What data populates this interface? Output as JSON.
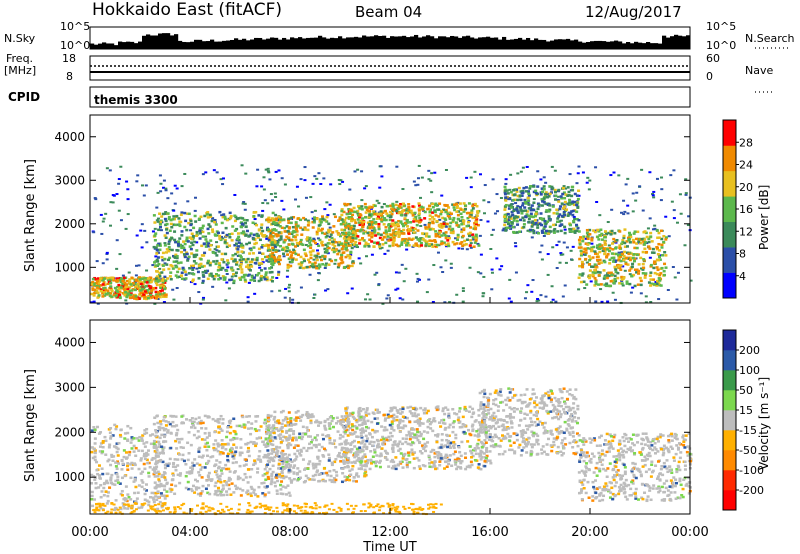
{
  "header": {
    "station": "Hokkaido East (fitACF)",
    "beam": "Beam 04",
    "date": "12/Aug/2017"
  },
  "status_panels": {
    "nsky_label": "N.Sky",
    "nsky_ticks": [
      "10^5",
      "10^0"
    ],
    "nsearch_label": "N.Search",
    "nsearch_ticks": [
      "10^5",
      "10^0"
    ],
    "freq_label_1": "Freq.",
    "freq_label_2": "[MHz]",
    "freq_ticks": [
      "18",
      "8"
    ],
    "nave_label": "Nave",
    "nave_ticks": [
      "60",
      "0"
    ],
    "cpid_label": "CPID",
    "cpid_value": "themis 3300"
  },
  "chart_data": [
    {
      "type": "heatmap",
      "name": "power",
      "ylabel": "Slant Range [km]",
      "yticks": [
        "4000",
        "3000",
        "2000",
        "1000"
      ],
      "ylim": [
        180,
        4500
      ],
      "xlim_hours": [
        0,
        24
      ],
      "colorbar_label": "Power [dB]",
      "colorbar_ticks": [
        "28",
        "24",
        "20",
        "16",
        "12",
        "8",
        "4"
      ],
      "colorbar_colors": [
        "#0000ff",
        "#2b4fa8",
        "#3b8a5a",
        "#5cb84c",
        "#e8c020",
        "#f08a00",
        "#ff0000"
      ],
      "echo_bands": [
        {
          "start_h": 0.0,
          "end_h": 3.0,
          "range_km": [
            300,
            800
          ],
          "level": 28
        },
        {
          "start_h": 2.5,
          "end_h": 7.5,
          "range_km": [
            700,
            2300
          ],
          "level": 22
        },
        {
          "start_h": 7.0,
          "end_h": 10.5,
          "range_km": [
            1000,
            2200
          ],
          "level": 26
        },
        {
          "start_h": 10.0,
          "end_h": 15.5,
          "range_km": [
            1500,
            2500
          ],
          "level": 27
        },
        {
          "start_h": 16.5,
          "end_h": 19.5,
          "range_km": [
            1800,
            2900
          ],
          "level": 20
        },
        {
          "start_h": 19.5,
          "end_h": 23.0,
          "range_km": [
            600,
            1900
          ],
          "level": 26
        }
      ]
    },
    {
      "type": "heatmap",
      "name": "velocity",
      "ylabel": "Slant Range [km]",
      "yticks": [
        "4000",
        "3000",
        "2000",
        "1000"
      ],
      "ylim": [
        180,
        4500
      ],
      "xlim_hours": [
        0,
        24
      ],
      "colorbar_label": "Velocity [m s⁻¹]",
      "colorbar_ticks": [
        "200",
        "100",
        "50",
        "15",
        "-15",
        "-50",
        "-100",
        "-200"
      ],
      "colorbar_colors": [
        "#ff0000",
        "#ff2a00",
        "#ff8a00",
        "#ffb000",
        "#bdbdbd",
        "#7cd84e",
        "#3a9a4a",
        "#2b5aa8",
        "#1e2a9a"
      ],
      "dominant_level": "-15 to 15"
    }
  ],
  "x_axis": {
    "ticks": [
      "00:00",
      "04:00",
      "08:00",
      "12:00",
      "16:00",
      "20:00",
      "00:00"
    ],
    "label": "Time UT"
  }
}
